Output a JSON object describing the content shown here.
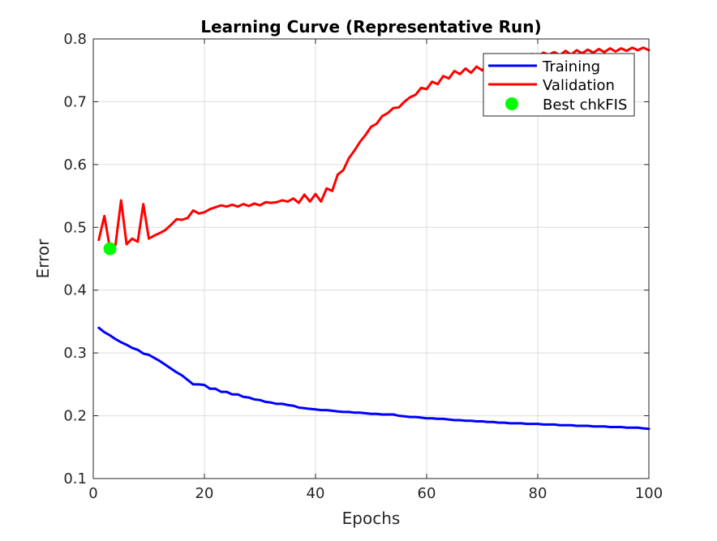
{
  "chart_data": {
    "type": "line",
    "title": "Learning Curve (Representative Run)",
    "xlabel": "Epochs",
    "ylabel": "Error",
    "xlim": [
      0,
      100
    ],
    "ylim": [
      0.1,
      0.8
    ],
    "xticks": [
      0,
      20,
      40,
      60,
      80,
      100
    ],
    "xtick_labels": [
      "0",
      "20",
      "40",
      "60",
      "80",
      "100"
    ],
    "yticks": [
      0.1,
      0.2,
      0.3,
      0.4,
      0.5,
      0.6,
      0.7,
      0.8
    ],
    "ytick_labels": [
      "0.1",
      "0.2",
      "0.3",
      "0.4",
      "0.5",
      "0.6",
      "0.7",
      "0.8"
    ],
    "grid": true,
    "legend_position": "top-right",
    "series": [
      {
        "name": "Training",
        "color": "#0000ff",
        "x": [
          1,
          2,
          3,
          4,
          5,
          6,
          7,
          8,
          9,
          10,
          11,
          12,
          13,
          14,
          15,
          16,
          17,
          18,
          19,
          20,
          21,
          22,
          23,
          24,
          25,
          26,
          27,
          28,
          29,
          30,
          31,
          32,
          33,
          34,
          35,
          36,
          37,
          38,
          39,
          40,
          41,
          42,
          43,
          44,
          45,
          46,
          47,
          48,
          49,
          50,
          51,
          52,
          53,
          54,
          55,
          56,
          57,
          58,
          59,
          60,
          61,
          62,
          63,
          64,
          65,
          66,
          67,
          68,
          69,
          70,
          71,
          72,
          73,
          74,
          75,
          76,
          77,
          78,
          79,
          80,
          81,
          82,
          83,
          84,
          85,
          86,
          87,
          88,
          89,
          90,
          91,
          92,
          93,
          94,
          95,
          96,
          97,
          98,
          99,
          100
        ],
        "y": [
          0.34,
          0.333,
          0.328,
          0.322,
          0.317,
          0.313,
          0.308,
          0.305,
          0.299,
          0.297,
          0.292,
          0.287,
          0.281,
          0.275,
          0.269,
          0.264,
          0.257,
          0.25,
          0.25,
          0.249,
          0.243,
          0.243,
          0.238,
          0.238,
          0.234,
          0.234,
          0.23,
          0.229,
          0.226,
          0.225,
          0.222,
          0.221,
          0.219,
          0.219,
          0.217,
          0.216,
          0.213,
          0.212,
          0.211,
          0.21,
          0.209,
          0.209,
          0.208,
          0.207,
          0.206,
          0.206,
          0.205,
          0.205,
          0.204,
          0.203,
          0.203,
          0.202,
          0.202,
          0.202,
          0.2,
          0.199,
          0.198,
          0.198,
          0.197,
          0.196,
          0.196,
          0.195,
          0.195,
          0.194,
          0.193,
          0.193,
          0.192,
          0.192,
          0.191,
          0.191,
          0.19,
          0.19,
          0.189,
          0.189,
          0.188,
          0.188,
          0.188,
          0.187,
          0.187,
          0.187,
          0.186,
          0.186,
          0.186,
          0.185,
          0.185,
          0.185,
          0.184,
          0.184,
          0.184,
          0.183,
          0.183,
          0.183,
          0.182,
          0.182,
          0.182,
          0.181,
          0.181,
          0.181,
          0.18,
          0.179
        ]
      },
      {
        "name": "Validation",
        "color": "#ff0000",
        "x": [
          1,
          2,
          3,
          4,
          5,
          6,
          7,
          8,
          9,
          10,
          11,
          12,
          13,
          14,
          15,
          16,
          17,
          18,
          19,
          20,
          21,
          22,
          23,
          24,
          25,
          26,
          27,
          28,
          29,
          30,
          31,
          32,
          33,
          34,
          35,
          36,
          37,
          38,
          39,
          40,
          41,
          42,
          43,
          44,
          45,
          46,
          47,
          48,
          49,
          50,
          51,
          52,
          53,
          54,
          55,
          56,
          57,
          58,
          59,
          60,
          61,
          62,
          63,
          64,
          65,
          66,
          67,
          68,
          69,
          70,
          71,
          72,
          73,
          74,
          75,
          76,
          77,
          78,
          79,
          80,
          81,
          82,
          83,
          84,
          85,
          86,
          87,
          88,
          89,
          90,
          91,
          92,
          93,
          94,
          95,
          96,
          97,
          98,
          99,
          100
        ],
        "y": [
          0.48,
          0.518,
          0.466,
          0.472,
          0.543,
          0.473,
          0.482,
          0.477,
          0.537,
          0.482,
          0.487,
          0.491,
          0.496,
          0.504,
          0.513,
          0.512,
          0.515,
          0.527,
          0.522,
          0.524,
          0.529,
          0.532,
          0.535,
          0.533,
          0.536,
          0.533,
          0.537,
          0.534,
          0.538,
          0.535,
          0.54,
          0.539,
          0.54,
          0.543,
          0.541,
          0.546,
          0.539,
          0.552,
          0.541,
          0.553,
          0.541,
          0.562,
          0.558,
          0.584,
          0.591,
          0.61,
          0.622,
          0.636,
          0.647,
          0.66,
          0.665,
          0.677,
          0.682,
          0.69,
          0.691,
          0.7,
          0.707,
          0.711,
          0.722,
          0.72,
          0.732,
          0.728,
          0.741,
          0.737,
          0.749,
          0.744,
          0.753,
          0.746,
          0.756,
          0.75,
          0.76,
          0.762,
          0.768,
          0.764,
          0.772,
          0.768,
          0.774,
          0.77,
          0.776,
          0.772,
          0.778,
          0.775,
          0.779,
          0.774,
          0.781,
          0.775,
          0.782,
          0.777,
          0.783,
          0.778,
          0.784,
          0.779,
          0.785,
          0.78,
          0.785,
          0.781,
          0.786,
          0.782,
          0.786,
          0.782
        ]
      }
    ],
    "best_point": {
      "name": "Best chkFIS",
      "color": "#00ff00",
      "x": 3,
      "y": 0.466
    },
    "legend": {
      "training_label": "Training",
      "validation_label": "Validation",
      "best_label": "Best chkFIS"
    }
  }
}
